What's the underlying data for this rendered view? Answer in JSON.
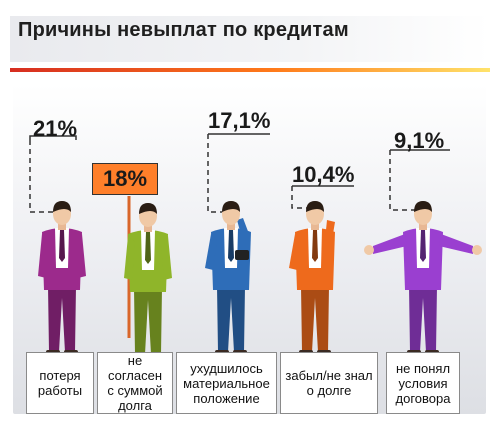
{
  "header": {
    "title": "Причины невыплат по кредитам"
  },
  "chart_data": {
    "type": "bar",
    "title": "Причины невыплат по кредитам",
    "unit": "%",
    "categories": [
      "потеря\nработы",
      "не согласен\nс суммой\nдолга",
      "ухудшилось\nматериальное\nположение",
      "забыл/не знал\nо долге",
      "не понял\nусловия\nдоговора"
    ],
    "value_labels": [
      "21%",
      "18%",
      "17,1%",
      "10,4%",
      "9,1%"
    ],
    "values": [
      21,
      18,
      17.1,
      10.4,
      9.1
    ],
    "figure_colors": [
      "#9c2a8c",
      "#8fb52a",
      "#2e6db8",
      "#ee6a1c",
      "#9a3fd0"
    ]
  }
}
